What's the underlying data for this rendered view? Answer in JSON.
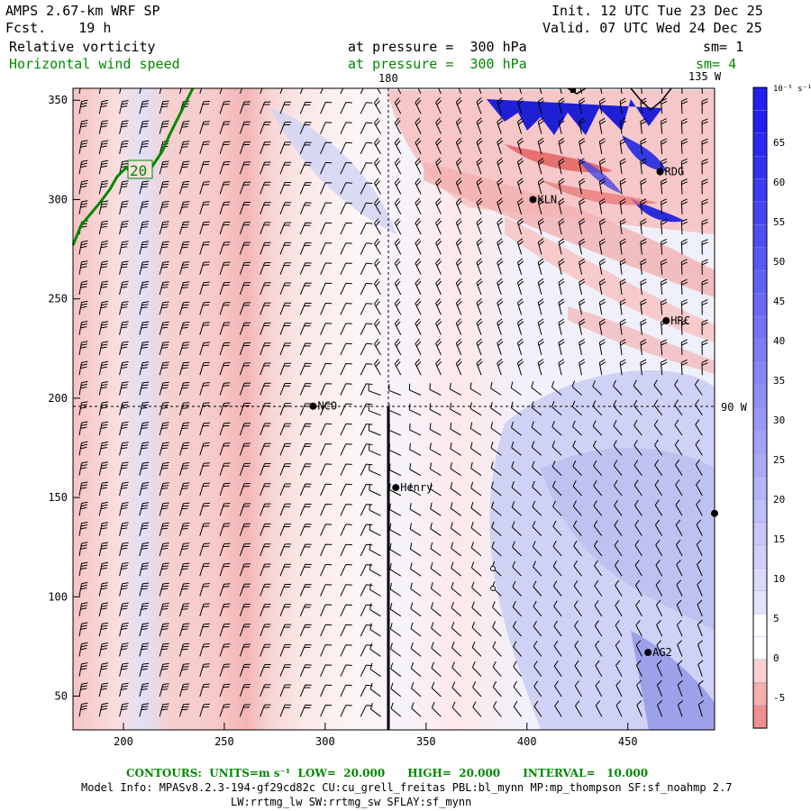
{
  "header": {
    "title": "AMPS 2.67-km WRF SP",
    "fcst": "Fcst.    19 h",
    "init": "Init. 12 UTC Tue 23 Dec 25",
    "valid": "Valid. 07 UTC Wed 24 Dec 25",
    "field1": "Relative vorticity",
    "field1_pressure": "at pressure =  300 hPa",
    "field1_sm": "sm= 1",
    "field2": "Horizontal wind speed",
    "field2_pressure": "at pressure =  300 hPa",
    "field2_sm": "sm= 4"
  },
  "map": {
    "meridian_label": "180",
    "meridian_label_2": "135 W",
    "meridian_label_3": "90 W",
    "contour_label": "20",
    "x_ticks": [
      200,
      250,
      300,
      350,
      400,
      450
    ],
    "y_ticks": [
      50,
      100,
      150,
      200,
      250,
      300,
      350
    ],
    "x_range": [
      175,
      493
    ],
    "y_range": [
      33,
      356
    ],
    "stations": [
      {
        "name": "NCO",
        "x": 294,
        "y": 196
      },
      {
        "name": "Henry",
        "x": 335,
        "y": 155
      },
      {
        "name": "KLN",
        "x": 403,
        "y": 300
      },
      {
        "name": "RDG",
        "x": 466,
        "y": 314
      },
      {
        "name": "HRC",
        "x": 469,
        "y": 239
      },
      {
        "name": "AG2",
        "x": 460,
        "y": 72
      },
      {
        "name": "",
        "x": 493,
        "y": 142
      }
    ],
    "colors": {
      "positive": "#f06a6a",
      "negative": "#3a3ae0",
      "coast": "#008800"
    }
  },
  "colorbar": {
    "unit_label": "10⁻⁵ s⁻¹",
    "labels": [
      "65",
      "60",
      "55",
      "50",
      "45",
      "40",
      "35",
      "30",
      "25",
      "20",
      "15",
      "10",
      "5",
      "0",
      "-5"
    ]
  },
  "footer": {
    "contours": "CONTOURS:  UNITS=m s⁻¹  LOW=  20.000      HIGH=  20.000      INTERVAL=   10.000",
    "model_info": "Model Info: MPASv8.2.3-194-gf29cd82c CU:cu_grell_freitas PBL:bl_mynn MP:mp_thompson SF:sf_noahmp 2.7",
    "model_info_2": "LW:rrtmg_lw SW:rrtmg_sw SFLAY:sf_mynn"
  }
}
